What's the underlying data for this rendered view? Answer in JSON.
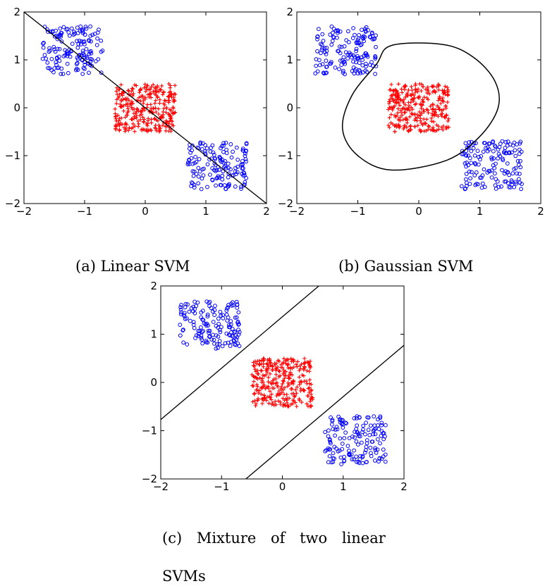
{
  "captions": {
    "a": "(a) Linear SVM",
    "b": "(b) Gaussian SVM",
    "c_line1": "(c) Mixture of two linear",
    "c_line2": "SVMs"
  },
  "colors": {
    "positive": "#ff0000",
    "negative": "#0000ff",
    "boundary": "#000000"
  },
  "chart_data": [
    {
      "id": "a",
      "type": "scatter",
      "title": "",
      "xlabel": "",
      "ylabel": "",
      "xlim": [
        -2,
        2
      ],
      "ylim": [
        -2,
        2
      ],
      "xticks": [
        -2,
        -1,
        0,
        1,
        2
      ],
      "yticks": [
        -2,
        -1,
        0,
        1,
        2
      ],
      "grid": false,
      "clusters": [
        {
          "marker": "circle",
          "color": "blue",
          "x_range": [
            -1.7,
            -0.7
          ],
          "y_range": [
            0.7,
            1.7
          ],
          "count": 150
        },
        {
          "marker": "plus",
          "color": "red",
          "x_range": [
            -0.5,
            0.5
          ],
          "y_range": [
            -0.5,
            0.5
          ],
          "count": 300
        },
        {
          "marker": "circle",
          "color": "blue",
          "x_range": [
            0.7,
            1.7
          ],
          "y_range": [
            -1.7,
            -0.7
          ],
          "count": 150
        }
      ],
      "boundaries": [
        {
          "shape": "line",
          "points": [
            [
              -2,
              2
            ],
            [
              2,
              -2
            ]
          ]
        }
      ]
    },
    {
      "id": "b",
      "type": "scatter",
      "title": "",
      "xlabel": "",
      "ylabel": "",
      "xlim": [
        -2,
        2
      ],
      "ylim": [
        -2,
        2
      ],
      "xticks": [
        -2,
        -1,
        0,
        1,
        2
      ],
      "yticks": [
        -2,
        -1,
        0,
        1,
        2
      ],
      "grid": false,
      "clusters": [
        {
          "marker": "circle",
          "color": "blue",
          "x_range": [
            -1.7,
            -0.7
          ],
          "y_range": [
            0.7,
            1.7
          ],
          "count": 150
        },
        {
          "marker": "plus",
          "color": "red",
          "x_range": [
            -0.5,
            0.5
          ],
          "y_range": [
            -0.5,
            0.5
          ],
          "count": 300
        },
        {
          "marker": "circle",
          "color": "blue",
          "x_range": [
            0.7,
            1.7
          ],
          "y_range": [
            -1.7,
            -0.7
          ],
          "count": 150
        }
      ],
      "boundaries": [
        {
          "shape": "closed",
          "points": [
            [
              -0.45,
              1.3
            ],
            [
              0.4,
              1.32
            ],
            [
              0.9,
              1.05
            ],
            [
              1.25,
              0.55
            ],
            [
              1.3,
              0.0
            ],
            [
              1.0,
              -0.6
            ],
            [
              0.45,
              -1.1
            ],
            [
              -0.45,
              -1.3
            ],
            [
              -1.0,
              -1.0
            ],
            [
              -1.25,
              -0.45
            ],
            [
              -1.1,
              0.25
            ],
            [
              -0.7,
              0.9
            ]
          ]
        }
      ]
    },
    {
      "id": "c",
      "type": "scatter",
      "title": "",
      "xlabel": "",
      "ylabel": "",
      "xlim": [
        -2,
        2
      ],
      "ylim": [
        -2,
        2
      ],
      "xticks": [
        -2,
        -1,
        0,
        1,
        2
      ],
      "yticks": [
        -2,
        -1,
        0,
        1,
        2
      ],
      "grid": false,
      "clusters": [
        {
          "marker": "circle",
          "color": "blue",
          "x_range": [
            -1.7,
            -0.7
          ],
          "y_range": [
            0.7,
            1.7
          ],
          "count": 150
        },
        {
          "marker": "plus",
          "color": "red",
          "x_range": [
            -0.5,
            0.5
          ],
          "y_range": [
            -0.5,
            0.5
          ],
          "count": 300
        },
        {
          "marker": "circle",
          "color": "blue",
          "x_range": [
            0.7,
            1.7
          ],
          "y_range": [
            -1.7,
            -0.7
          ],
          "count": 150
        }
      ],
      "boundaries": [
        {
          "shape": "line",
          "points": [
            [
              -2,
              -0.77
            ],
            [
              0.6,
              2
            ]
          ]
        },
        {
          "shape": "line",
          "points": [
            [
              -0.6,
              -2
            ],
            [
              2,
              0.77
            ]
          ]
        }
      ]
    }
  ]
}
